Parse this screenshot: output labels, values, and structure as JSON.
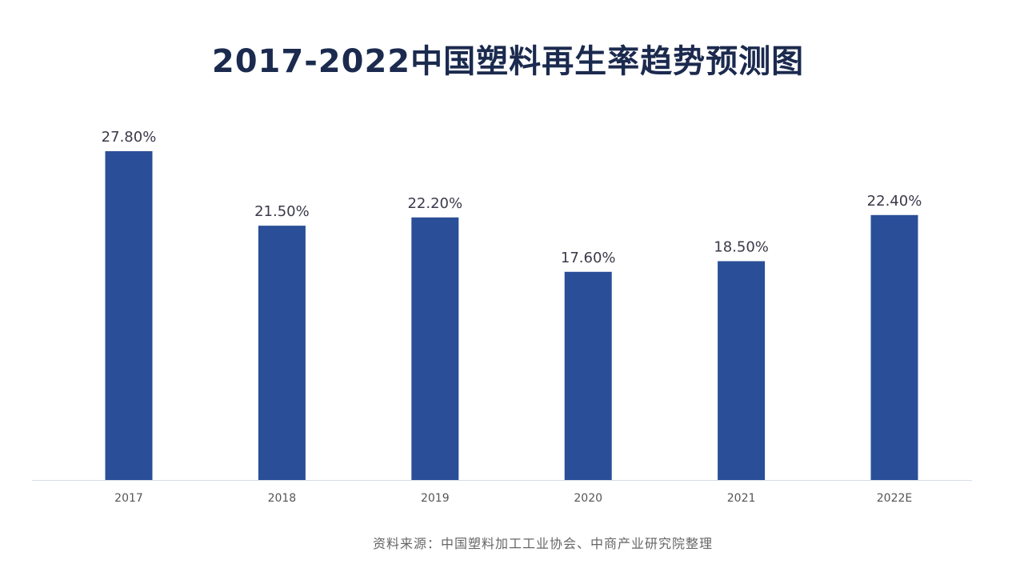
{
  "colors": {
    "bar": "#2a4f98",
    "title": "#1b2a4e",
    "data_label": "#3a3a4a",
    "tick_label": "#555555",
    "axis": "#d8dde8"
  },
  "chart_data": {
    "type": "bar",
    "title": "2017-2022中国塑料再生率趋势预测图",
    "categories": [
      "2017",
      "2018",
      "2019",
      "2020",
      "2021",
      "2022E"
    ],
    "values": [
      27.8,
      21.5,
      22.2,
      17.6,
      18.5,
      22.4
    ],
    "data_labels": [
      "27.80%",
      "21.50%",
      "22.20%",
      "17.60%",
      "18.50%",
      "22.40%"
    ],
    "ylim": [
      0,
      28
    ],
    "grid": false,
    "legend": "none",
    "xlabel": "",
    "ylabel": ""
  },
  "source": "资料来源：中国塑料加工工业协会、中商产业研究院整理"
}
